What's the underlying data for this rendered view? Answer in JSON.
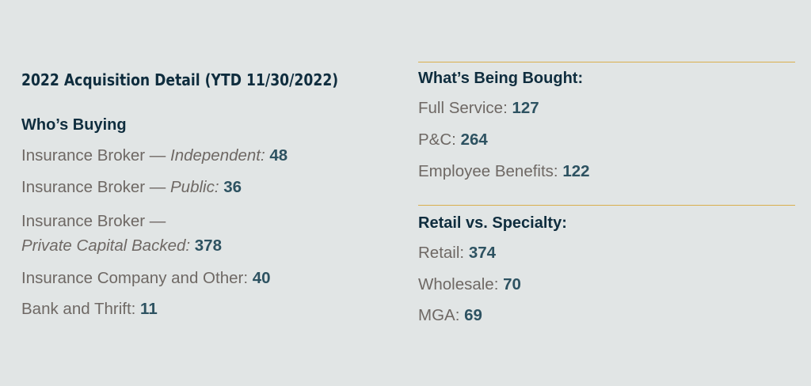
{
  "title": "2022 Acquisition Detail (YTD 11/30/2022)",
  "buyers": {
    "heading": "Who’s Buying",
    "rows": [
      {
        "label": "Insurance Broker — ",
        "label_italic": "Independent:",
        "value": "48"
      },
      {
        "label": "Insurance Broker — ",
        "label_italic": "Public:",
        "value": "36"
      },
      {
        "label": "Insurance Broker —",
        "label_italic": "Private Capital Backed:",
        "value": "378"
      },
      {
        "label": "Insurance Company and Other:",
        "value": "40"
      },
      {
        "label": "Bank and Thrift:",
        "value": "11"
      }
    ]
  },
  "bought": {
    "heading": "What’s Being Bought:",
    "rows": [
      {
        "label": "Full Service:",
        "value": "127"
      },
      {
        "label": "P&C:",
        "value": "264"
      },
      {
        "label": "Employee Benefits:",
        "value": "122"
      }
    ]
  },
  "retail": {
    "heading": "Retail vs. Specialty:",
    "rows": [
      {
        "label": "Retail:",
        "value": "374"
      },
      {
        "label": "Wholesale:",
        "value": "70"
      },
      {
        "label": "MGA:",
        "value": "69"
      }
    ]
  },
  "colors": {
    "background": "#e1e5e5",
    "heading": "#0f2d3e",
    "label": "#6e6864",
    "value": "#2d5261",
    "rule": "#d9ae4e"
  }
}
